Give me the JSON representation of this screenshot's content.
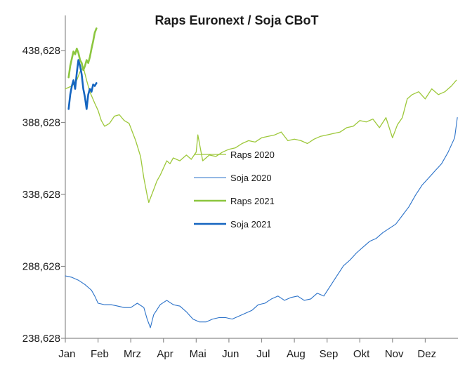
{
  "chart_data": {
    "type": "line",
    "title": "Raps Euronext / Soja CBoT",
    "xlabel": "",
    "ylabel": "",
    "x_tick_labels": [
      "Jan",
      "Feb",
      "Mrz",
      "Apr",
      "Mai",
      "Jun",
      "Jul",
      "Aug",
      "Sep",
      "Okt",
      "Nov",
      "Dez"
    ],
    "x_range_months": [
      0,
      12
    ],
    "y_ticks": [
      238.628,
      288.628,
      338.628,
      388.628,
      438.628
    ],
    "y_tick_labels": [
      "238,628",
      "288,628",
      "338,628",
      "388,628",
      "438,628"
    ],
    "ylim": [
      238.628,
      463
    ],
    "grid": false,
    "legend_position": "center",
    "series": [
      {
        "name": "Raps 2020",
        "color": "#9dc83a",
        "width": 1.3,
        "x": [
          0.0,
          0.2,
          0.35,
          0.45,
          0.55,
          0.65,
          0.75,
          0.9,
          1.0,
          1.1,
          1.2,
          1.35,
          1.5,
          1.65,
          1.8,
          1.95,
          2.05,
          2.15,
          2.3,
          2.4,
          2.5,
          2.55,
          2.6,
          2.7,
          2.8,
          2.9,
          3.0,
          3.1,
          3.2,
          3.3,
          3.5,
          3.7,
          3.85,
          4.0,
          4.05,
          4.2,
          4.4,
          4.6,
          4.8,
          5.0,
          5.2,
          5.4,
          5.6,
          5.8,
          6.0,
          6.2,
          6.4,
          6.6,
          6.8,
          7.0,
          7.2,
          7.4,
          7.6,
          7.8,
          8.0,
          8.2,
          8.4,
          8.6,
          8.8,
          9.0,
          9.2,
          9.4,
          9.6,
          9.8,
          10.0,
          10.15,
          10.3,
          10.45,
          10.6,
          10.8,
          11.0,
          11.2,
          11.4,
          11.6,
          11.8,
          11.95
        ],
        "y": [
          412,
          414,
          418,
          424,
          427,
          418,
          410,
          402,
          397,
          390,
          386,
          388,
          393,
          394,
          390,
          388,
          382,
          376,
          365,
          350,
          338,
          333,
          336,
          342,
          348,
          352,
          357,
          362,
          360,
          364,
          362,
          366,
          363,
          368,
          380,
          362,
          366,
          365,
          368,
          370,
          371,
          374,
          376,
          375,
          378,
          379,
          380,
          382,
          376,
          377,
          376,
          374,
          377,
          379,
          380,
          381,
          382,
          385,
          386,
          390,
          389,
          391,
          385,
          392,
          378,
          387,
          392,
          405,
          408,
          410,
          405,
          412,
          408,
          410,
          414,
          418
        ]
      },
      {
        "name": "Soja 2020",
        "color": "#2b72c9",
        "width": 1.1,
        "x": [
          0.0,
          0.2,
          0.4,
          0.6,
          0.8,
          0.9,
          1.0,
          1.2,
          1.4,
          1.6,
          1.8,
          2.0,
          2.2,
          2.4,
          2.5,
          2.6,
          2.7,
          2.9,
          3.1,
          3.3,
          3.5,
          3.7,
          3.9,
          4.1,
          4.3,
          4.5,
          4.7,
          4.9,
          5.1,
          5.3,
          5.5,
          5.7,
          5.9,
          6.1,
          6.3,
          6.5,
          6.7,
          6.9,
          7.1,
          7.3,
          7.5,
          7.7,
          7.9,
          8.1,
          8.3,
          8.5,
          8.7,
          8.9,
          9.1,
          9.3,
          9.5,
          9.7,
          9.9,
          10.1,
          10.3,
          10.5,
          10.7,
          10.9,
          11.1,
          11.3,
          11.5,
          11.7,
          11.9,
          11.98
        ],
        "y": [
          282,
          281,
          279,
          276,
          272,
          268,
          263,
          262,
          262,
          261,
          260,
          260,
          263,
          260,
          252,
          246,
          255,
          262,
          265,
          262,
          261,
          257,
          252,
          250,
          250,
          252,
          253,
          253,
          252,
          254,
          256,
          258,
          262,
          263,
          266,
          268,
          265,
          267,
          268,
          265,
          266,
          270,
          268,
          275,
          282,
          289,
          293,
          298,
          302,
          306,
          308,
          312,
          315,
          318,
          324,
          330,
          338,
          345,
          350,
          355,
          360,
          368,
          378,
          392
        ]
      },
      {
        "name": "Raps 2021",
        "color": "#8cc63f",
        "width": 2.6,
        "x": [
          0.1,
          0.15,
          0.2,
          0.25,
          0.3,
          0.35,
          0.4,
          0.45,
          0.5,
          0.55,
          0.6,
          0.65,
          0.7,
          0.75,
          0.8,
          0.85,
          0.9,
          0.95
        ],
        "y": [
          420,
          428,
          433,
          438,
          436,
          440,
          437,
          432,
          430,
          425,
          428,
          432,
          430,
          434,
          440,
          445,
          451,
          454
        ]
      },
      {
        "name": "Soja 2021",
        "color": "#1565c0",
        "width": 2.6,
        "x": [
          0.1,
          0.15,
          0.2,
          0.25,
          0.3,
          0.35,
          0.4,
          0.45,
          0.5,
          0.55,
          0.6,
          0.65,
          0.7,
          0.75,
          0.8,
          0.85,
          0.9,
          0.95
        ],
        "y": [
          398,
          408,
          414,
          418,
          412,
          423,
          432,
          428,
          422,
          412,
          406,
          398,
          408,
          412,
          410,
          415,
          414,
          416
        ]
      }
    ]
  }
}
